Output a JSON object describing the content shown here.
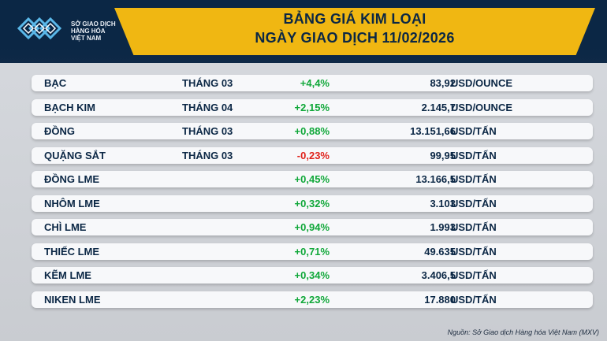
{
  "logo": {
    "line1": "SỞ GIAO DỊCH",
    "line2": "HÀNG HÓA",
    "line3": "VIỆT NAM"
  },
  "header": {
    "title_line1": "BẢNG GIÁ KIM LOẠI",
    "title_line2": "NGÀY GIAO DỊCH 11/02/2026"
  },
  "rows": [
    {
      "name": "BẠC",
      "month": "THÁNG 03",
      "change": "+4,4%",
      "price": "83,92",
      "unit": "USD/OUNCE"
    },
    {
      "name": "BẠCH KIM",
      "month": "THÁNG 04",
      "change": "+2,15%",
      "price": "2.145,7",
      "unit": "USD/OUNCE"
    },
    {
      "name": "ĐỒNG",
      "month": "THÁNG 03",
      "change": "+0,88%",
      "price": "13.151,66",
      "unit": "USD/TẤN"
    },
    {
      "name": "QUẶNG SẮT",
      "month": "THÁNG 03",
      "change": "-0,23%",
      "price": "99,95",
      "unit": "USD/TẤN"
    },
    {
      "name": "ĐỒNG LME",
      "month": "",
      "change": "+0,45%",
      "price": "13.166,5",
      "unit": "USD/TẤN"
    },
    {
      "name": "NHÔM LME",
      "month": "",
      "change": "+0,32%",
      "price": "3.103",
      "unit": "USD/TẤN"
    },
    {
      "name": "CHÌ LME",
      "month": "",
      "change": "+0,94%",
      "price": "1.993",
      "unit": "USD/TẤN"
    },
    {
      "name": "THIẾC LME",
      "month": "",
      "change": "+0,71%",
      "price": "49.635",
      "unit": "USD/TẤN"
    },
    {
      "name": "KẼM LME",
      "month": "",
      "change": "+0,34%",
      "price": "3.406,5",
      "unit": "USD/TẤN"
    },
    {
      "name": "NIKEN LME",
      "month": "",
      "change": "+2,23%",
      "price": "17.880",
      "unit": "USD/TẤN"
    }
  ],
  "source": "Nguồn: Sở Giao dịch Hàng hóa Việt Nam (MXV)",
  "colors": {
    "positive": "#11a83a",
    "negative": "#e0231c",
    "accent": "#f0b712",
    "brand": "#0b2745"
  }
}
